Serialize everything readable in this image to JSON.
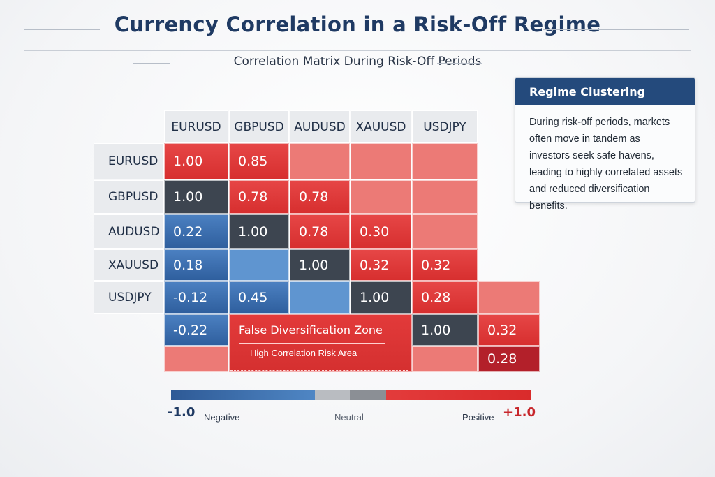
{
  "header": {
    "title": "Currency Correlation in a Risk-Off Regime",
    "subtitle": "Correlation Matrix During Risk-Off Periods"
  },
  "chart_data": {
    "type": "heatmap",
    "title": "Currency Correlation in a Risk-Off Regime",
    "subtitle": "Correlation Matrix During Risk-Off Periods",
    "columns": [
      "EURUSD",
      "GBPUSD",
      "AUDUSD",
      "XAUUSD",
      "USDJPY"
    ],
    "rows": [
      "EURUSD",
      "GBPUSD",
      "AUDUSD",
      "XAUUSD",
      "USDJPY"
    ],
    "cells": [
      {
        "row": 0,
        "col": 0,
        "value": 1.0,
        "label": "1.00"
      },
      {
        "row": 0,
        "col": 1,
        "value": 0.85,
        "label": "0.85"
      },
      {
        "row": 0,
        "col": 2,
        "value": 0.55,
        "label": ""
      },
      {
        "row": 0,
        "col": 3,
        "value": 0.55,
        "label": ""
      },
      {
        "row": 0,
        "col": 4,
        "value": 0.55,
        "label": ""
      },
      {
        "row": 1,
        "col": 0,
        "value": 1.0,
        "label": "1.00",
        "diag": true
      },
      {
        "row": 1,
        "col": 1,
        "value": 0.78,
        "label": "0.78"
      },
      {
        "row": 1,
        "col": 2,
        "value": 0.78,
        "label": "0.78"
      },
      {
        "row": 1,
        "col": 3,
        "value": 0.55,
        "label": ""
      },
      {
        "row": 1,
        "col": 4,
        "value": 0.55,
        "label": ""
      },
      {
        "row": 2,
        "col": 0,
        "value": 0.22,
        "label": "0.22",
        "tone": "negative"
      },
      {
        "row": 2,
        "col": 1,
        "value": 1.0,
        "label": "1.00",
        "diag": true
      },
      {
        "row": 2,
        "col": 2,
        "value": 0.78,
        "label": "0.78"
      },
      {
        "row": 2,
        "col": 3,
        "value": 0.3,
        "label": "0.30"
      },
      {
        "row": 2,
        "col": 4,
        "value": 0.55,
        "label": ""
      },
      {
        "row": 3,
        "col": 0,
        "value": 0.18,
        "label": "0.18",
        "tone": "negative"
      },
      {
        "row": 3,
        "col": 1,
        "value": -0.5,
        "label": "",
        "tone": "negative"
      },
      {
        "row": 3,
        "col": 2,
        "value": 1.0,
        "label": "1.00",
        "diag": true
      },
      {
        "row": 3,
        "col": 3,
        "value": 0.32,
        "label": "0.32"
      },
      {
        "row": 3,
        "col": 4,
        "value": 0.32,
        "label": "0.32"
      },
      {
        "row": 4,
        "col": 0,
        "value": -0.12,
        "label": "-0.12",
        "tone": "negative"
      },
      {
        "row": 4,
        "col": 1,
        "value": 0.45,
        "label": "0.45",
        "tone": "negative"
      },
      {
        "row": 4,
        "col": 2,
        "value": -0.3,
        "label": "",
        "tone": "negative"
      },
      {
        "row": 4,
        "col": 3,
        "value": 1.0,
        "label": "1.00",
        "diag": true
      },
      {
        "row": 4,
        "col": 4,
        "value": 0.28,
        "label": "0.28"
      },
      {
        "row": 4,
        "col": 5,
        "value": 0.6,
        "label": ""
      },
      {
        "row": 5,
        "col": 0,
        "value": -0.22,
        "label": "-0.22",
        "tone": "negative"
      },
      {
        "row": 5,
        "col": 4,
        "value": 1.0,
        "label": "1.00",
        "diag": true
      },
      {
        "row": 5,
        "col": 5,
        "value": 0.32,
        "label": "0.32"
      },
      {
        "row": 6,
        "col": 0,
        "value": 0.5,
        "label": ""
      },
      {
        "row": 6,
        "col": 4,
        "value": 0.5,
        "label": ""
      },
      {
        "row": 6,
        "col": 5,
        "value": 0.28,
        "label": "0.28",
        "tone": "dark"
      }
    ],
    "zone": {
      "title": "False Diversification Zone",
      "subtitle": "High Correlation Risk Area"
    },
    "colorbar": {
      "min": -1.0,
      "max": 1.0,
      "min_label": "-1.0",
      "max_label": "+1.0",
      "labels": [
        "Negative",
        "Neutral",
        "Positive"
      ]
    }
  },
  "panel": {
    "title": "Regime Clustering",
    "lines": [
      "During risk-off periods, markets",
      "often move in tandem as",
      "investors seek safe havens,",
      "leading to highly correlated assets",
      "and reduced diversification benefits."
    ]
  },
  "colors": {
    "red": "#e03535",
    "red_light": "#ec7a76",
    "red_dark": "#b3202a",
    "blue": "#3a6db0",
    "blue_light": "#5f95d0",
    "diag": "#3d4550",
    "title": "#1f3a63"
  }
}
